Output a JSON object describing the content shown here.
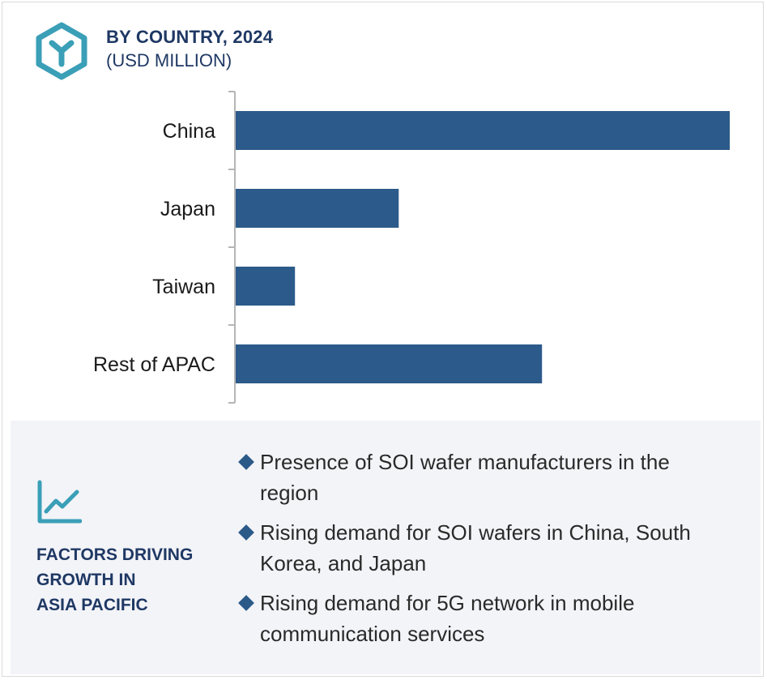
{
  "header": {
    "title": "BY COUNTRY, 2024",
    "subtitle": "(USD MILLION)"
  },
  "colors": {
    "bar": "#2c5a8a",
    "accent": "#3a9fb7",
    "title": "#1f3864",
    "panel": "#f3f4f8"
  },
  "chart_data": {
    "type": "bar",
    "orientation": "horizontal",
    "categories": [
      "China",
      "Japan",
      "Taiwan",
      "Rest of APAC"
    ],
    "values": [
      100,
      33,
      12,
      62
    ],
    "xlim": [
      0,
      100
    ],
    "title": "BY COUNTRY, 2024",
    "subtitle": "(USD MILLION)",
    "xlabel": "",
    "ylabel": "",
    "grid": false,
    "legend": "none"
  },
  "factors": {
    "icon": "line-chart-icon",
    "title_lines": [
      "FACTORS DRIVING",
      "GROWTH IN",
      "ASIA PACIFIC"
    ],
    "items": [
      "Presence of SOI wafer manufacturers in the region",
      "Rising demand for SOI wafers in China, South Korea, and Japan",
      "Rising demand for 5G network in mobile communication services"
    ]
  }
}
